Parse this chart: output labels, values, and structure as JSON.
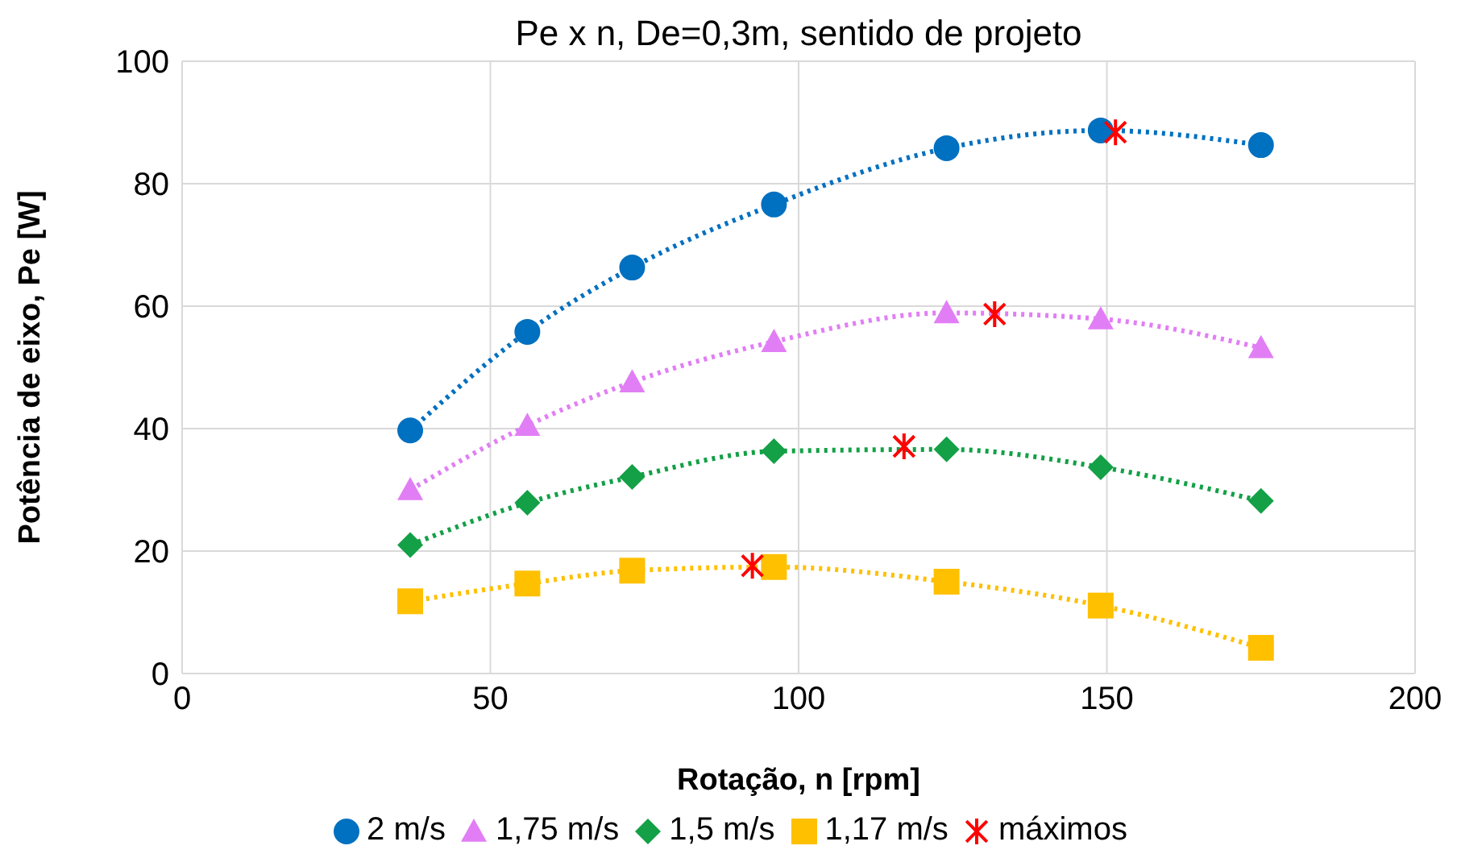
{
  "chart_data": {
    "type": "line",
    "title": "Pe x n, De=0,3m, sentido de projeto",
    "xlabel": "Rotação, n [rpm]",
    "ylabel": "Potência de eixo, Pe [W]",
    "xlim": [
      0,
      200
    ],
    "xticks": [
      0,
      50,
      100,
      150,
      200
    ],
    "ylim": [
      0,
      100
    ],
    "yticks": [
      0,
      20,
      40,
      60,
      80,
      100
    ],
    "grid": true,
    "legend": "bottom",
    "line_style": "dotted",
    "series": [
      {
        "name": "2 m/s",
        "color": "#0070c0",
        "marker": "circle",
        "x": [
          37,
          56,
          73,
          96,
          124,
          149,
          175
        ],
        "values": [
          39.7,
          55.8,
          66.3,
          76.6,
          85.8,
          88.7,
          86.3
        ]
      },
      {
        "name": "1,75 m/s",
        "color": "#e17ef5",
        "marker": "triangle",
        "x": [
          37,
          56,
          73,
          96,
          124,
          149,
          175
        ],
        "values": [
          30,
          40.5,
          47.6,
          54.2,
          58.9,
          57.9,
          53.2
        ]
      },
      {
        "name": "1,5 m/s",
        "color": "#13a046",
        "marker": "diamond",
        "x": [
          37,
          56,
          73,
          96,
          124,
          149,
          175
        ],
        "values": [
          21,
          27.9,
          32.1,
          36.3,
          36.6,
          33.7,
          28.2
        ]
      },
      {
        "name": "1,17 m/s",
        "color": "#ffc000",
        "marker": "square",
        "x": [
          37,
          56,
          73,
          96,
          124,
          149,
          175
        ],
        "values": [
          11.8,
          14.7,
          16.8,
          17.4,
          15,
          11.1,
          4.2
        ]
      },
      {
        "name": "máximos",
        "type": "scatter",
        "color": "#ff0000",
        "marker": "cross",
        "x": [
          151.4,
          131.8,
          117.1,
          92.5
        ],
        "values": [
          88.4,
          58.7,
          37.1,
          17.6
        ]
      }
    ]
  }
}
